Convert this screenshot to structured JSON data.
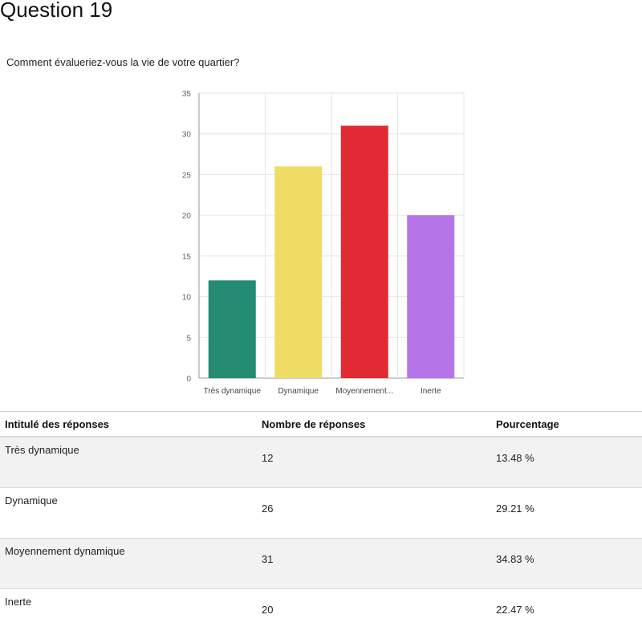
{
  "page": {
    "title": "Question 19",
    "question": "Comment évalueriez-vous la vie de votre quartier?"
  },
  "chart_data": {
    "type": "bar",
    "categories": [
      "Très dynamique",
      "Dynamique",
      "Moyennement...",
      "Inerte"
    ],
    "values": [
      12,
      26,
      31,
      20
    ],
    "colors": [
      "#238c72",
      "#efdc64",
      "#e22a35",
      "#b574e8"
    ],
    "ylim": [
      0,
      35
    ],
    "yticks": [
      0,
      5,
      10,
      15,
      20,
      25,
      30,
      35
    ],
    "grid": true,
    "title": "",
    "xlabel": "",
    "ylabel": ""
  },
  "table": {
    "headers": [
      "Intitulé des réponses",
      "Nombre de réponses",
      "Pourcentage"
    ],
    "rows": [
      {
        "label": "Très dynamique",
        "count": "12",
        "percent": "13.48 %"
      },
      {
        "label": "Dynamique",
        "count": "26",
        "percent": "29.21 %"
      },
      {
        "label": "Moyennement dynamique",
        "count": "31",
        "percent": "34.83 %"
      },
      {
        "label": "Inerte",
        "count": "20",
        "percent": "22.47 %"
      }
    ]
  }
}
